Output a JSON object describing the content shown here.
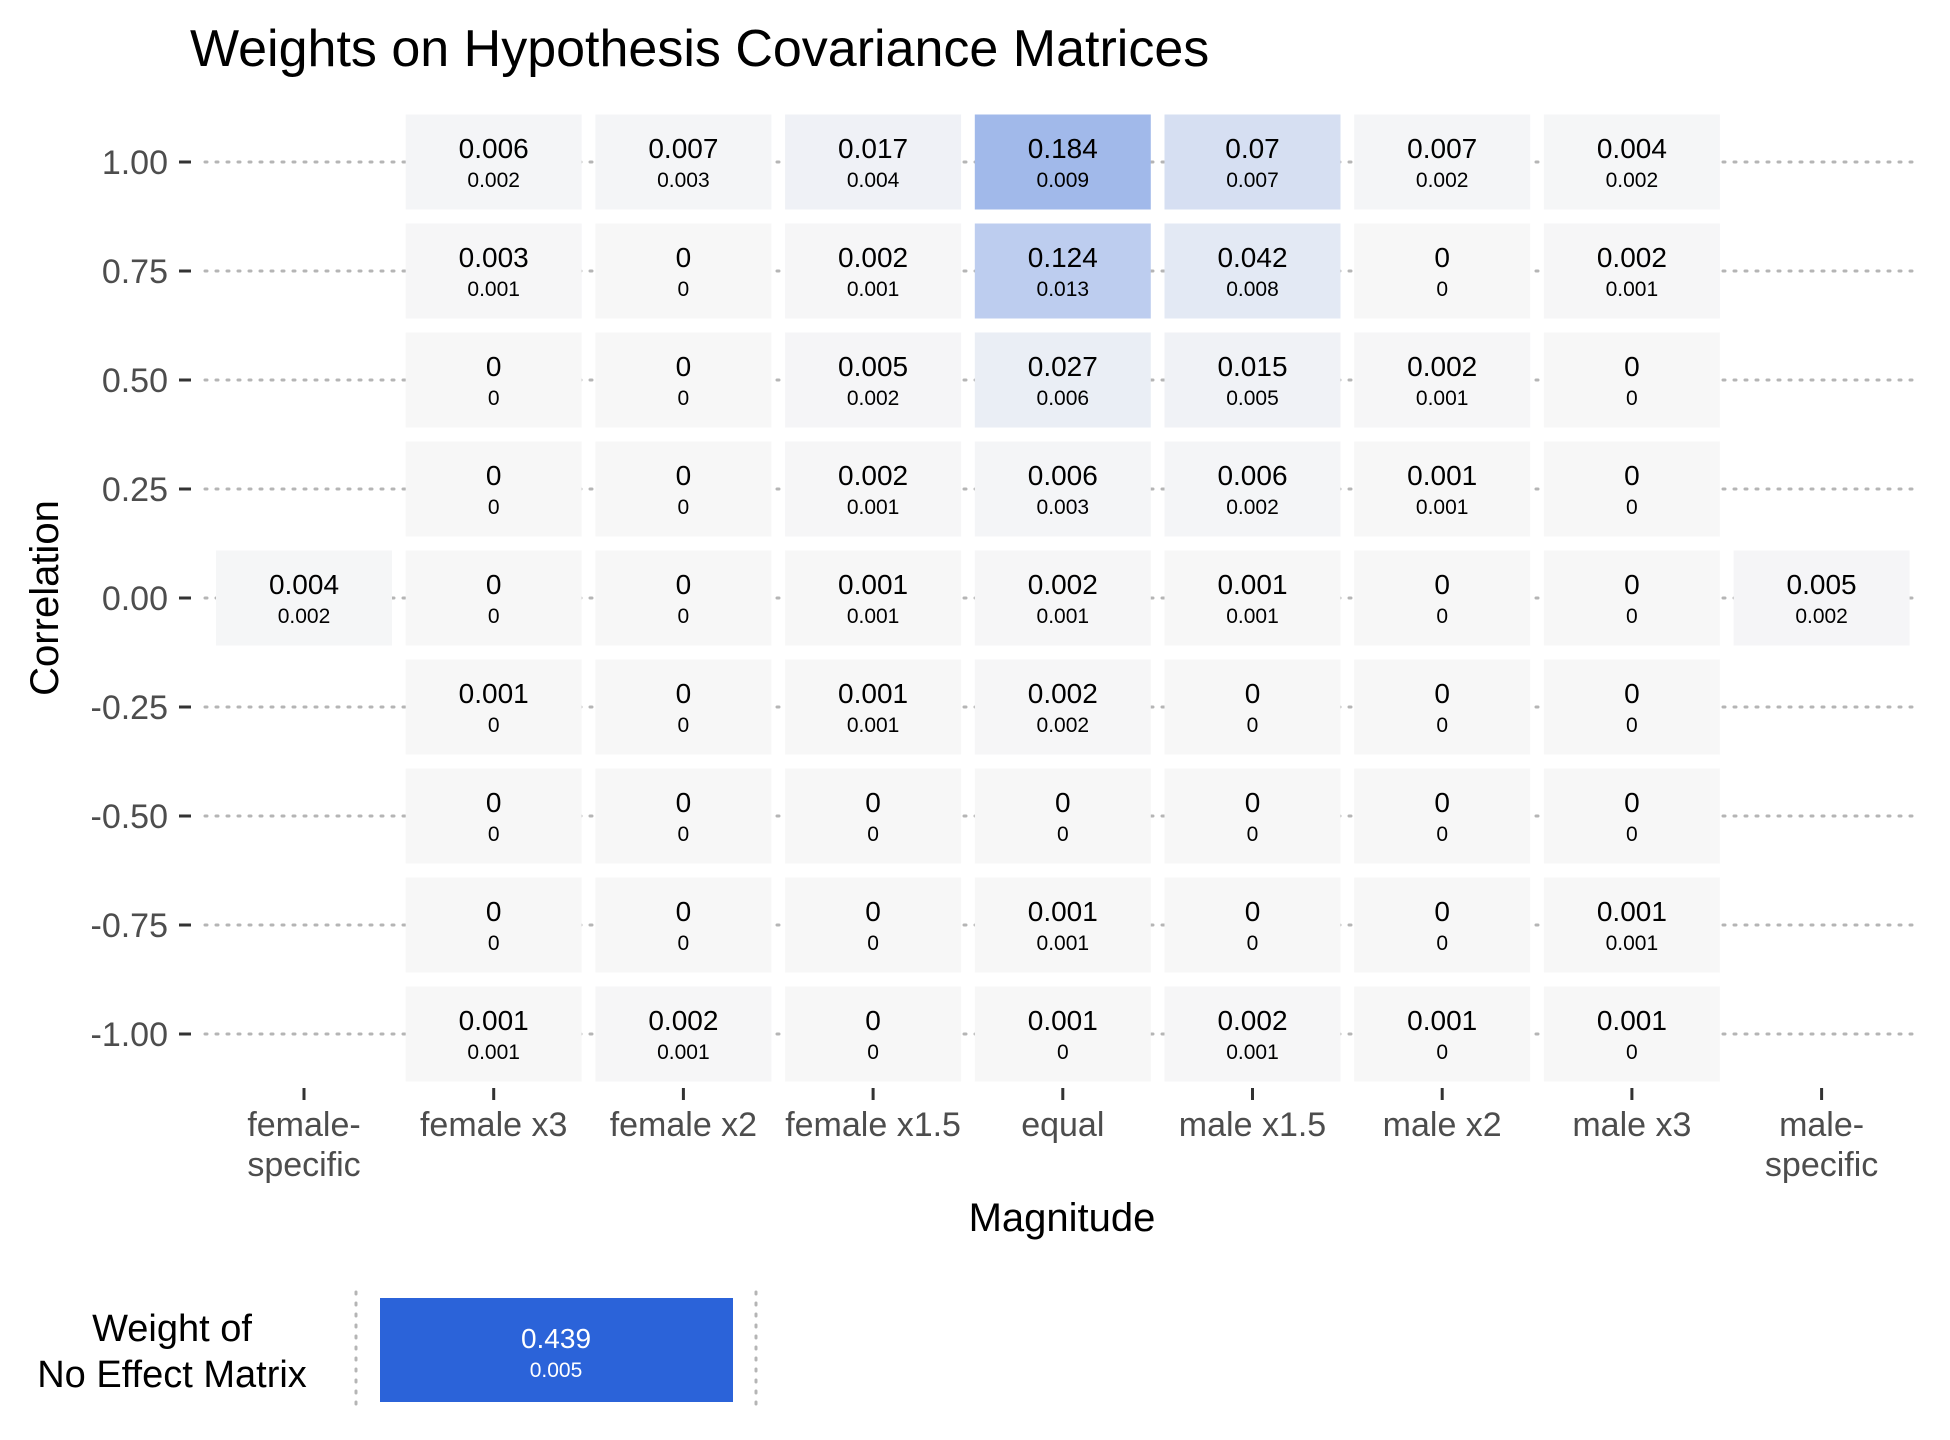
{
  "chart_data": {
    "type": "heatmap",
    "title": "Weights on Hypothesis Covariance Matrices",
    "xlabel": "Magnitude",
    "ylabel": "Correlation",
    "x_categories": [
      "female-\nspecific",
      "female x3",
      "female x2",
      "female x1.5",
      "equal",
      "male x1.5",
      "male x2",
      "male x3",
      "male-\nspecific"
    ],
    "y_categories": [
      "1.00",
      "0.75",
      "0.50",
      "0.25",
      "0.00",
      "-0.25",
      "-0.50",
      "-0.75",
      "-1.00"
    ],
    "grid": "dotted horizontal",
    "color_low": "#f7f7f7",
    "color_high": "#2b63d9",
    "cells": [
      {
        "x": "female-\nspecific",
        "y": "0.00",
        "value": "0.004",
        "se": "0.002"
      },
      {
        "x": "male-\nspecific",
        "y": "0.00",
        "value": "0.005",
        "se": "0.002"
      },
      {
        "x": "female x3",
        "y": "1.00",
        "value": "0.006",
        "se": "0.002"
      },
      {
        "x": "female x2",
        "y": "1.00",
        "value": "0.007",
        "se": "0.003"
      },
      {
        "x": "female x1.5",
        "y": "1.00",
        "value": "0.017",
        "se": "0.004"
      },
      {
        "x": "equal",
        "y": "1.00",
        "value": "0.184",
        "se": "0.009"
      },
      {
        "x": "male x1.5",
        "y": "1.00",
        "value": "0.07",
        "se": "0.007"
      },
      {
        "x": "male x2",
        "y": "1.00",
        "value": "0.007",
        "se": "0.002"
      },
      {
        "x": "male x3",
        "y": "1.00",
        "value": "0.004",
        "se": "0.002"
      },
      {
        "x": "female x3",
        "y": "0.75",
        "value": "0.003",
        "se": "0.001"
      },
      {
        "x": "female x2",
        "y": "0.75",
        "value": "0",
        "se": "0"
      },
      {
        "x": "female x1.5",
        "y": "0.75",
        "value": "0.002",
        "se": "0.001"
      },
      {
        "x": "equal",
        "y": "0.75",
        "value": "0.124",
        "se": "0.013"
      },
      {
        "x": "male x1.5",
        "y": "0.75",
        "value": "0.042",
        "se": "0.008"
      },
      {
        "x": "male x2",
        "y": "0.75",
        "value": "0",
        "se": "0"
      },
      {
        "x": "male x3",
        "y": "0.75",
        "value": "0.002",
        "se": "0.001"
      },
      {
        "x": "female x3",
        "y": "0.50",
        "value": "0",
        "se": "0"
      },
      {
        "x": "female x2",
        "y": "0.50",
        "value": "0",
        "se": "0"
      },
      {
        "x": "female x1.5",
        "y": "0.50",
        "value": "0.005",
        "se": "0.002"
      },
      {
        "x": "equal",
        "y": "0.50",
        "value": "0.027",
        "se": "0.006"
      },
      {
        "x": "male x1.5",
        "y": "0.50",
        "value": "0.015",
        "se": "0.005"
      },
      {
        "x": "male x2",
        "y": "0.50",
        "value": "0.002",
        "se": "0.001"
      },
      {
        "x": "male x3",
        "y": "0.50",
        "value": "0",
        "se": "0"
      },
      {
        "x": "female x3",
        "y": "0.25",
        "value": "0",
        "se": "0"
      },
      {
        "x": "female x2",
        "y": "0.25",
        "value": "0",
        "se": "0"
      },
      {
        "x": "female x1.5",
        "y": "0.25",
        "value": "0.002",
        "se": "0.001"
      },
      {
        "x": "equal",
        "y": "0.25",
        "value": "0.006",
        "se": "0.003"
      },
      {
        "x": "male x1.5",
        "y": "0.25",
        "value": "0.006",
        "se": "0.002"
      },
      {
        "x": "male x2",
        "y": "0.25",
        "value": "0.001",
        "se": "0.001"
      },
      {
        "x": "male x3",
        "y": "0.25",
        "value": "0",
        "se": "0"
      },
      {
        "x": "female x3",
        "y": "0.00",
        "value": "0",
        "se": "0"
      },
      {
        "x": "female x2",
        "y": "0.00",
        "value": "0",
        "se": "0"
      },
      {
        "x": "female x1.5",
        "y": "0.00",
        "value": "0.001",
        "se": "0.001"
      },
      {
        "x": "equal",
        "y": "0.00",
        "value": "0.002",
        "se": "0.001"
      },
      {
        "x": "male x1.5",
        "y": "0.00",
        "value": "0.001",
        "se": "0.001"
      },
      {
        "x": "male x2",
        "y": "0.00",
        "value": "0",
        "se": "0"
      },
      {
        "x": "male x3",
        "y": "0.00",
        "value": "0",
        "se": "0"
      },
      {
        "x": "female x3",
        "y": "-0.25",
        "value": "0.001",
        "se": "0"
      },
      {
        "x": "female x2",
        "y": "-0.25",
        "value": "0",
        "se": "0"
      },
      {
        "x": "female x1.5",
        "y": "-0.25",
        "value": "0.001",
        "se": "0.001"
      },
      {
        "x": "equal",
        "y": "-0.25",
        "value": "0.002",
        "se": "0.002"
      },
      {
        "x": "male x1.5",
        "y": "-0.25",
        "value": "0",
        "se": "0"
      },
      {
        "x": "male x2",
        "y": "-0.25",
        "value": "0",
        "se": "0"
      },
      {
        "x": "male x3",
        "y": "-0.25",
        "value": "0",
        "se": "0"
      },
      {
        "x": "female x3",
        "y": "-0.50",
        "value": "0",
        "se": "0"
      },
      {
        "x": "female x2",
        "y": "-0.50",
        "value": "0",
        "se": "0"
      },
      {
        "x": "female x1.5",
        "y": "-0.50",
        "value": "0",
        "se": "0"
      },
      {
        "x": "equal",
        "y": "-0.50",
        "value": "0",
        "se": "0"
      },
      {
        "x": "male x1.5",
        "y": "-0.50",
        "value": "0",
        "se": "0"
      },
      {
        "x": "male x2",
        "y": "-0.50",
        "value": "0",
        "se": "0"
      },
      {
        "x": "male x3",
        "y": "-0.50",
        "value": "0",
        "se": "0"
      },
      {
        "x": "female x3",
        "y": "-0.75",
        "value": "0",
        "se": "0"
      },
      {
        "x": "female x2",
        "y": "-0.75",
        "value": "0",
        "se": "0"
      },
      {
        "x": "female x1.5",
        "y": "-0.75",
        "value": "0",
        "se": "0"
      },
      {
        "x": "equal",
        "y": "-0.75",
        "value": "0.001",
        "se": "0.001"
      },
      {
        "x": "male x1.5",
        "y": "-0.75",
        "value": "0",
        "se": "0"
      },
      {
        "x": "male x2",
        "y": "-0.75",
        "value": "0",
        "se": "0"
      },
      {
        "x": "male x3",
        "y": "-0.75",
        "value": "0.001",
        "se": "0.001"
      },
      {
        "x": "female x3",
        "y": "-1.00",
        "value": "0.001",
        "se": "0.001"
      },
      {
        "x": "female x2",
        "y": "-1.00",
        "value": "0.002",
        "se": "0.001"
      },
      {
        "x": "female x1.5",
        "y": "-1.00",
        "value": "0",
        "se": "0"
      },
      {
        "x": "equal",
        "y": "-1.00",
        "value": "0.001",
        "se": "0"
      },
      {
        "x": "male x1.5",
        "y": "-1.00",
        "value": "0.002",
        "se": "0.001"
      },
      {
        "x": "male x2",
        "y": "-1.00",
        "value": "0.001",
        "se": "0"
      },
      {
        "x": "male x3",
        "y": "-1.00",
        "value": "0.001",
        "se": "0"
      }
    ],
    "no_effect": {
      "label": "Weight of\nNo Effect Matrix",
      "value": "0.439",
      "se": "0.005"
    }
  }
}
